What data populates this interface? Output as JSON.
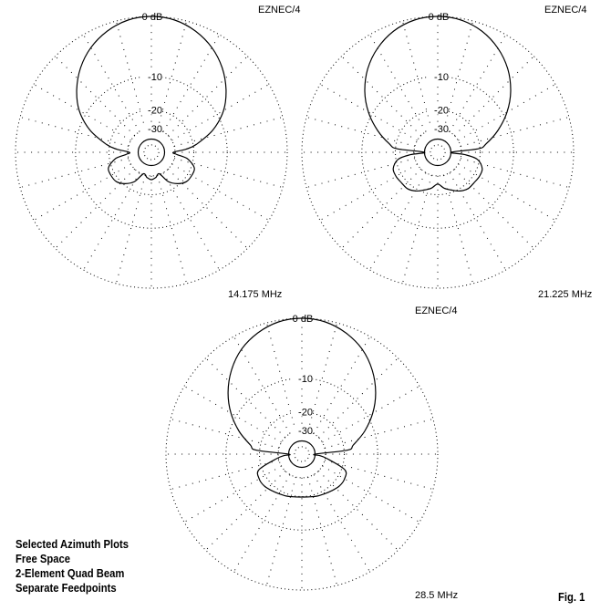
{
  "notes": [
    "Selected Azimuth Plots",
    "Free Space",
    "2-Element Quad Beam",
    "Separate Feedpoints"
  ],
  "figure_label": "Fig. 1",
  "chart_data": [
    {
      "type": "polar",
      "program_label": "EZNEC/4",
      "frequency_label": "14.175 MHz",
      "radial_scale": "ARRL log",
      "rings_db": [
        0,
        -10,
        -20,
        -30,
        -40,
        -50
      ],
      "ring_labels": [
        "0 dB",
        "-10",
        "-20",
        "-30"
      ],
      "spoke_step_deg": 15,
      "grid": true,
      "line_color": "#000000",
      "azimuth_deg": [
        0,
        10,
        20,
        30,
        40,
        50,
        60,
        70,
        80,
        85,
        90,
        95,
        100,
        110,
        120,
        130,
        140,
        150,
        160,
        170,
        180,
        190,
        200,
        210,
        220,
        230,
        240,
        250,
        260,
        265,
        270,
        275,
        280,
        290,
        300,
        310,
        320,
        330,
        340,
        350
      ],
      "gain_db": [
        0,
        -0.2,
        -0.9,
        -2.0,
        -3.6,
        -5.7,
        -8.4,
        -12.5,
        -18.7,
        -23.5,
        -31.3,
        -28.7,
        -22.6,
        -18.7,
        -18.4,
        -18.7,
        -20.6,
        -23.9,
        -30.6,
        -28.7,
        -27.5,
        -28.7,
        -30.6,
        -23.9,
        -20.6,
        -18.7,
        -18.4,
        -18.7,
        -22.6,
        -28.7,
        -31.3,
        -23.5,
        -18.7,
        -12.5,
        -8.4,
        -5.7,
        -3.6,
        -2.0,
        -0.9,
        -0.2
      ]
    },
    {
      "type": "polar",
      "program_label": "EZNEC/4",
      "frequency_label": "21.225 MHz",
      "radial_scale": "ARRL log",
      "rings_db": [
        0,
        -10,
        -20,
        -30,
        -40,
        -50
      ],
      "ring_labels": [
        "0 dB",
        "-10",
        "-20",
        "-30"
      ],
      "spoke_step_deg": 15,
      "grid": true,
      "line_color": "#000000",
      "azimuth_deg": [
        0,
        10,
        20,
        30,
        40,
        50,
        60,
        70,
        80,
        85,
        90,
        95,
        100,
        110,
        120,
        130,
        140,
        150,
        160,
        170,
        180,
        190,
        200,
        210,
        220,
        230,
        240,
        250,
        260,
        265,
        270,
        275,
        280,
        290,
        300,
        310,
        320,
        330,
        340,
        350
      ],
      "gain_db": [
        0,
        -0.2,
        -0.9,
        -2.1,
        -3.8,
        -6.1,
        -9.1,
        -12.9,
        -17.4,
        -20.6,
        -40,
        -27.5,
        -20.9,
        -18.1,
        -17.8,
        -18.1,
        -18.1,
        -19.1,
        -20.9,
        -22.6,
        -24.9,
        -22.6,
        -20.9,
        -19.1,
        -18.1,
        -18.1,
        -17.8,
        -18.1,
        -20.9,
        -27.5,
        -40,
        -20.6,
        -17.4,
        -12.9,
        -9.1,
        -6.1,
        -3.8,
        -2.1,
        -0.9,
        -0.2
      ]
    },
    {
      "type": "polar",
      "program_label": "EZNEC/4",
      "frequency_label": "28.5 MHz",
      "radial_scale": "ARRL log",
      "rings_db": [
        0,
        -10,
        -20,
        -30,
        -40,
        -50
      ],
      "ring_labels": [
        "0 dB",
        "-10",
        "-20",
        "-30"
      ],
      "spoke_step_deg": 15,
      "grid": true,
      "line_color": "#000000",
      "azimuth_deg": [
        0,
        10,
        20,
        30,
        40,
        50,
        60,
        70,
        80,
        85,
        90,
        95,
        100,
        110,
        120,
        130,
        140,
        150,
        160,
        170,
        180,
        190,
        200,
        210,
        220,
        230,
        240,
        250,
        260,
        265,
        270,
        275,
        280,
        290,
        300,
        310,
        320,
        330,
        340,
        350
      ],
      "gain_db": [
        0,
        -0.2,
        -0.9,
        -2.0,
        -3.7,
        -5.9,
        -8.7,
        -12.2,
        -16.4,
        -18.6,
        -40,
        -34.5,
        -28.7,
        -18.7,
        -17.4,
        -17.4,
        -18.1,
        -18.7,
        -19.1,
        -19.6,
        -19.8,
        -19.6,
        -19.1,
        -18.7,
        -18.1,
        -17.4,
        -17.4,
        -18.7,
        -28.7,
        -34.5,
        -40,
        -18.6,
        -16.4,
        -12.2,
        -8.7,
        -5.9,
        -3.7,
        -2.0,
        -0.9,
        -0.2
      ]
    }
  ]
}
